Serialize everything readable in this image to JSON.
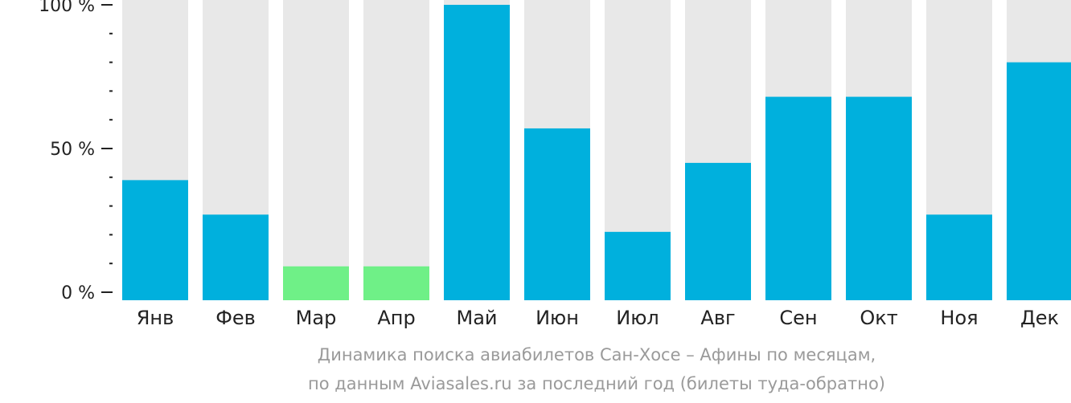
{
  "chart_data": {
    "type": "bar",
    "categories": [
      "Янв",
      "Фев",
      "Мар",
      "Апр",
      "Май",
      "Июн",
      "Июл",
      "Авг",
      "Сен",
      "Окт",
      "Ноя",
      "Дек"
    ],
    "values": [
      39,
      27,
      9,
      9,
      100,
      57,
      21,
      45,
      68,
      68,
      27,
      80
    ],
    "bar_colors": [
      "#00b0dd",
      "#00b0dd",
      "#6ff087",
      "#6ff087",
      "#00b0dd",
      "#00b0dd",
      "#00b0dd",
      "#00b0dd",
      "#00b0dd",
      "#00b0dd",
      "#00b0dd",
      "#00b0dd"
    ],
    "track_color": "#e8e8e8",
    "ylim": [
      0,
      100
    ],
    "y_ticks": [
      {
        "value": 100,
        "label": "100 %"
      },
      {
        "value": 50,
        "label": "50 %"
      },
      {
        "value": 0,
        "label": "0 %"
      }
    ],
    "y_minor_step": 10,
    "xlabel": "",
    "ylabel": "",
    "grid": false,
    "legend": "none"
  },
  "caption": {
    "line1": "Динамика поиска авиабилетов Сан-Хосе – Афины по месяцам,",
    "line2": "по данным Aviasales.ru за последний год (билеты туда-обратно)"
  }
}
